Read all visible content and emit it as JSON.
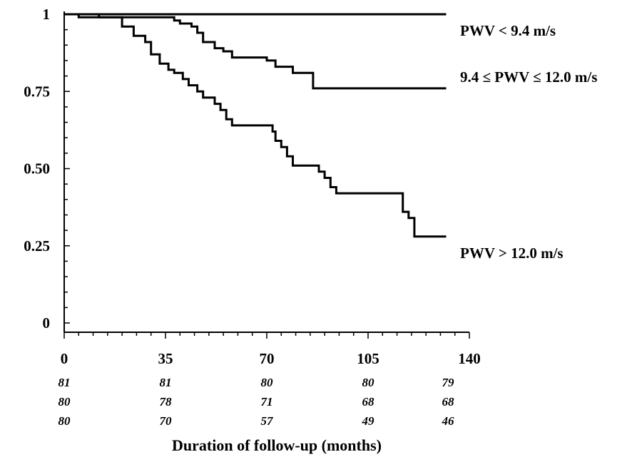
{
  "chart_data": {
    "type": "line",
    "title": "",
    "xlabel": "Duration of follow-up (months)",
    "ylabel": "",
    "xlim": [
      0,
      140
    ],
    "ylim": [
      0,
      1
    ],
    "x_ticks": [
      "0",
      "35",
      "70",
      "105",
      "140"
    ],
    "x_tick_values": [
      0,
      35,
      70,
      105,
      140
    ],
    "y_ticks": [
      "0",
      "0.25",
      "0.50",
      "0.75",
      "1"
    ],
    "y_tick_values": [
      0,
      0.25,
      0.5,
      0.75,
      1
    ],
    "grid": false,
    "series": [
      {
        "name": "PWV < 9.4 m/s",
        "color": "#000000",
        "step": true,
        "points": [
          [
            0,
            1
          ],
          [
            132,
            1
          ]
        ]
      },
      {
        "name": "9.4 ≤ PWV ≤ 12.0 m/s",
        "color": "#000000",
        "step": true,
        "points": [
          [
            0,
            1
          ],
          [
            5,
            0.99
          ],
          [
            30,
            0.99
          ],
          [
            38,
            0.98
          ],
          [
            40,
            0.97
          ],
          [
            44,
            0.96
          ],
          [
            46,
            0.94
          ],
          [
            48,
            0.91
          ],
          [
            52,
            0.89
          ],
          [
            55,
            0.88
          ],
          [
            58,
            0.86
          ],
          [
            70,
            0.85
          ],
          [
            73,
            0.83
          ],
          [
            79,
            0.81
          ],
          [
            86,
            0.81
          ],
          [
            86,
            0.76
          ],
          [
            132,
            0.76
          ]
        ]
      },
      {
        "name": "PWV > 12.0 m/s",
        "color": "#000000",
        "step": true,
        "points": [
          [
            0,
            1
          ],
          [
            12,
            0.99
          ],
          [
            20,
            0.96
          ],
          [
            24,
            0.93
          ],
          [
            28,
            0.91
          ],
          [
            30,
            0.87
          ],
          [
            33,
            0.84
          ],
          [
            36,
            0.82
          ],
          [
            38,
            0.81
          ],
          [
            41,
            0.79
          ],
          [
            43,
            0.77
          ],
          [
            46,
            0.75
          ],
          [
            48,
            0.73
          ],
          [
            52,
            0.71
          ],
          [
            54,
            0.69
          ],
          [
            56,
            0.66
          ],
          [
            58,
            0.64
          ],
          [
            72,
            0.62
          ],
          [
            73,
            0.59
          ],
          [
            75,
            0.57
          ],
          [
            77,
            0.54
          ],
          [
            79,
            0.51
          ],
          [
            88,
            0.49
          ],
          [
            90,
            0.47
          ],
          [
            92,
            0.44
          ],
          [
            94,
            0.42
          ],
          [
            117,
            0.36
          ],
          [
            119,
            0.34
          ],
          [
            121,
            0.28
          ],
          [
            132,
            0.28
          ]
        ]
      }
    ],
    "series_labels": [
      "PWV < 9.4 m/s",
      "9.4 ≤ PWV ≤ 12.0 m/s",
      "PWV > 12.0 m/s"
    ],
    "risk_table": {
      "rows": [
        [
          "81",
          "81",
          "80",
          "80",
          "79"
        ],
        [
          "80",
          "78",
          "71",
          "68",
          "68"
        ],
        [
          "80",
          "70",
          "57",
          "49",
          "46"
        ]
      ]
    }
  }
}
